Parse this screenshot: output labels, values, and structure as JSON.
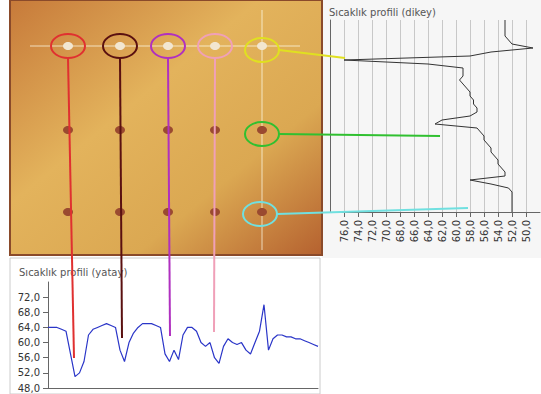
{
  "chart_data": [
    {
      "type": "line",
      "title": "Sıcaklık profili (dikey)",
      "orientation": "horizontal",
      "color": "#333333",
      "grid": true,
      "tick_labels": "x",
      "categories": [
        null,
        null,
        null,
        null,
        null,
        null,
        null,
        null,
        null,
        null,
        null,
        null,
        null,
        null,
        null,
        null,
        null,
        null,
        null,
        null,
        null,
        null,
        null,
        null,
        null,
        null,
        null,
        null,
        null,
        null,
        null,
        null,
        null,
        null,
        null,
        null,
        null,
        null,
        null,
        null,
        null,
        null,
        null,
        null,
        null,
        null,
        null,
        null,
        null
      ],
      "values": [
        53,
        53,
        53,
        53,
        53,
        52.5,
        52,
        49,
        55,
        58,
        76,
        64,
        59,
        59,
        59,
        59.5,
        59,
        58.5,
        58,
        58,
        57.5,
        57.5,
        57,
        57,
        58,
        62,
        63,
        57,
        56.5,
        56,
        56,
        55.5,
        55,
        55,
        54.5,
        54,
        54,
        53.5,
        53,
        53,
        58,
        55,
        52.5,
        52,
        52,
        52,
        52,
        52,
        52
      ],
      "xlim": [
        78,
        48
      ],
      "xticks": [
        {
          "value": 76,
          "label": "76,0"
        },
        {
          "value": 74,
          "label": "74,0"
        },
        {
          "value": 72,
          "label": "72,0"
        },
        {
          "value": 70,
          "label": "70,0"
        },
        {
          "value": 68,
          "label": "68,0"
        },
        {
          "value": 66,
          "label": "66,0"
        },
        {
          "value": 64,
          "label": "64,0"
        },
        {
          "value": 62,
          "label": "62,0"
        },
        {
          "value": 60,
          "label": "60,0"
        },
        {
          "value": 58,
          "label": "58,0"
        },
        {
          "value": 56,
          "label": "56,0"
        },
        {
          "value": 54,
          "label": "54,0"
        },
        {
          "value": 52,
          "label": "52,0"
        },
        {
          "value": 50,
          "label": "50,0"
        }
      ]
    },
    {
      "type": "line",
      "title": "Sıcaklık profili (yatay)",
      "color": "#2a35c8",
      "grid": false,
      "tick_labels": "y",
      "categories": [
        null,
        null,
        null,
        null,
        null,
        null,
        null,
        null,
        null,
        null,
        null,
        null,
        null,
        null,
        null,
        null,
        null,
        null,
        null,
        null,
        null,
        null,
        null,
        null,
        null,
        null,
        null,
        null,
        null,
        null,
        null,
        null,
        null,
        null,
        null,
        null,
        null,
        null,
        null,
        null,
        null,
        null,
        null,
        null,
        null,
        null,
        null,
        null,
        null,
        null,
        null,
        null,
        null,
        null,
        null,
        null,
        null,
        null,
        null,
        null,
        null
      ],
      "values": [
        64,
        64,
        64,
        63.5,
        63,
        57,
        51,
        52,
        55,
        62,
        63.5,
        64,
        64.5,
        65,
        64.5,
        64,
        58,
        55,
        60,
        62.5,
        64,
        65,
        65,
        65,
        64.5,
        64,
        57,
        55,
        58,
        55.5,
        62,
        64,
        64,
        63,
        60,
        59,
        60,
        56,
        54.5,
        59,
        61,
        60,
        59.5,
        60,
        58,
        57,
        60,
        63,
        70,
        58,
        61,
        62,
        62,
        61.5,
        61.5,
        61,
        61,
        60.5,
        60,
        59.5,
        59
      ],
      "ylim": [
        48,
        76
      ],
      "yticks": [
        {
          "value": 48,
          "label": "48,0"
        },
        {
          "value": 52,
          "label": "52,0"
        },
        {
          "value": 56,
          "label": "56,0"
        },
        {
          "value": 60,
          "label": "60,0"
        },
        {
          "value": 64,
          "label": "64,0"
        },
        {
          "value": 68,
          "label": "68,0"
        },
        {
          "value": 72,
          "label": "72,0"
        }
      ]
    }
  ]
}
